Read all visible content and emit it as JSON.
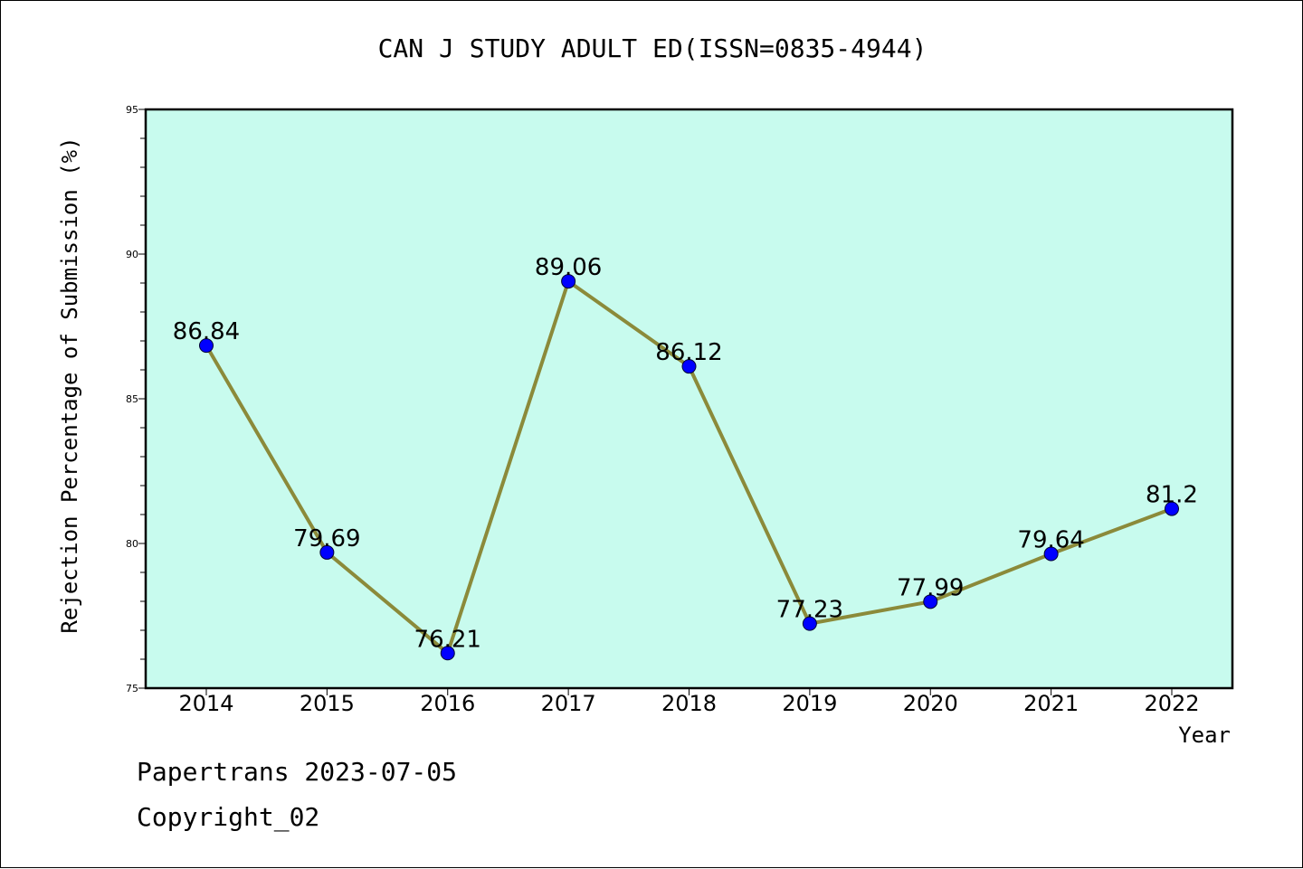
{
  "chart_data": {
    "type": "line",
    "title": "CAN J STUDY ADULT ED(ISSN=0835-4944)",
    "xlabel": "Year",
    "ylabel": "Rejection Percentage of Submission (%)",
    "categories": [
      "2014",
      "2015",
      "2016",
      "2017",
      "2018",
      "2019",
      "2020",
      "2021",
      "2022"
    ],
    "series": [
      {
        "values": [
          86.84,
          79.69,
          76.21,
          89.06,
          86.12,
          77.23,
          77.99,
          79.64,
          81.2
        ],
        "labels": [
          "86.84",
          "79.69",
          "76.21",
          "89.06",
          "86.12",
          "77.23",
          "77.99",
          "79.64",
          "81.2"
        ]
      }
    ],
    "ylim": [
      75,
      95
    ],
    "yticks": [
      "75",
      "80",
      "85",
      "90",
      "95"
    ],
    "grid": false,
    "colors": {
      "plot_background": "#c8fbee",
      "line": "#8b8a3a",
      "marker": "#0000ff"
    }
  },
  "footer": {
    "line1": "Papertrans 2023-07-05",
    "line2": "Copyright_02"
  }
}
